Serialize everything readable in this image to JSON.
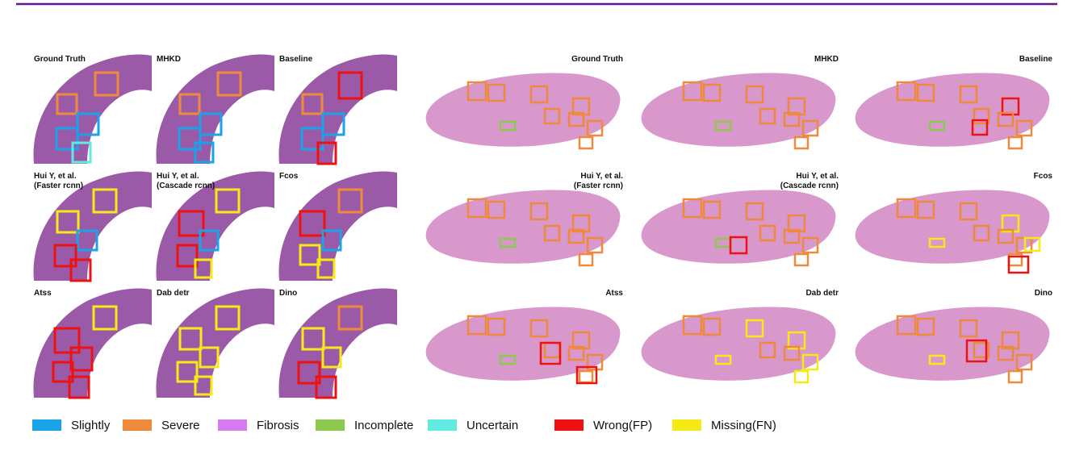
{
  "left_panels": [
    {
      "label": [
        "Ground Truth"
      ]
    },
    {
      "label": [
        "MHKD"
      ]
    },
    {
      "label": [
        "Baseline"
      ]
    },
    {
      "label": [
        "Hui Y, et al.",
        "(Faster rcnn)"
      ]
    },
    {
      "label": [
        "Hui Y, et al.",
        "(Cascade rcnn)"
      ]
    },
    {
      "label": [
        "Fcos"
      ]
    },
    {
      "label": [
        "Atss"
      ]
    },
    {
      "label": [
        "Dab detr"
      ]
    },
    {
      "label": [
        "Dino"
      ]
    }
  ],
  "right_panels": [
    {
      "label": [
        "Ground Truth"
      ]
    },
    {
      "label": [
        "MHKD"
      ]
    },
    {
      "label": [
        "Baseline"
      ]
    },
    {
      "label": [
        "Hui Y, et al.",
        "(Faster rcnn)"
      ]
    },
    {
      "label": [
        "Hui Y, et al.",
        "(Cascade rcnn)"
      ]
    },
    {
      "label": [
        "Fcos"
      ]
    },
    {
      "label": [
        "Atss"
      ]
    },
    {
      "label": [
        "Dab detr"
      ]
    },
    {
      "label": [
        "Dino"
      ]
    }
  ],
  "legend": [
    {
      "label": "Slightly",
      "color": "#1aa3e8"
    },
    {
      "label": "Severe",
      "color": "#ef8a3c"
    },
    {
      "label": "Fibrosis",
      "color": "#d779f0"
    },
    {
      "label": "Incomplete",
      "color": "#8dc94f"
    },
    {
      "label": "Uncertain",
      "color": "#62e9e0"
    },
    {
      "label": "Wrong(FP)",
      "color": "#ee1111"
    },
    {
      "label": "Missing(FN)",
      "color": "#f5ea14"
    }
  ]
}
